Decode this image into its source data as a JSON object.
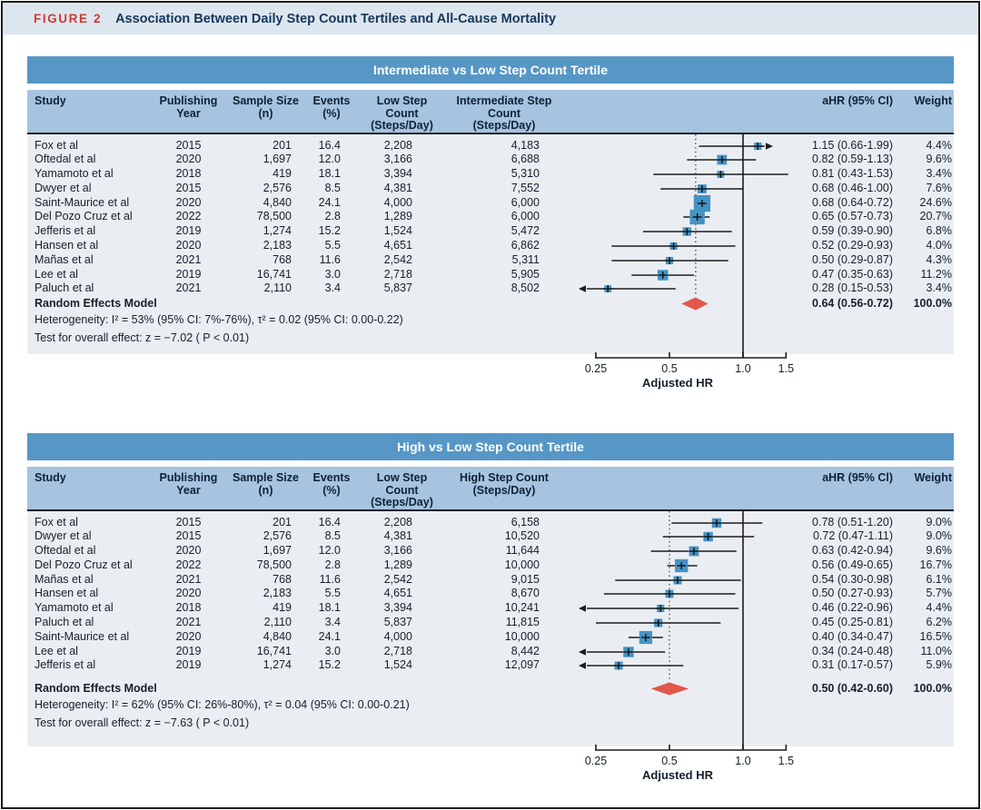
{
  "figure": {
    "label": "FIGURE 2",
    "title": "Association Between Daily Step Count Tertiles and All-Cause Mortality"
  },
  "colors": {
    "panel_header_bg": "#5697c6",
    "column_header_bg": "#a6c3e0",
    "body_bg": "#eaeef3",
    "title_band_bg": "#dce6ee",
    "figure_label_red": "#d03a30",
    "title_navy": "#16365c",
    "square_blue": "#4793c4",
    "diamond_red": "#e2574b",
    "line_black": "#1c1c1c"
  },
  "chart_data": [
    {
      "type": "forest",
      "title": "Intermediate vs Low Step Count Tertile",
      "columns": [
        {
          "l1": "Study",
          "l2": ""
        },
        {
          "l1": "Publishing Year",
          "l2": ""
        },
        {
          "l1": "Sample Size",
          "l2": "(n)"
        },
        {
          "l1": "Events",
          "l2": "(%)"
        },
        {
          "l1": "Low Step Count",
          "l2": "(Steps/Day)"
        },
        {
          "l1": "Intermediate Step Count",
          "l2": "(Steps/Day)"
        },
        {
          "l1": "",
          "l2": ""
        },
        {
          "l1": "aHR (95% CI)",
          "l2": ""
        },
        {
          "l1": "Weight",
          "l2": ""
        }
      ],
      "rows": [
        {
          "study": "Fox et al",
          "year": "2015",
          "n": "201",
          "events": "16.4",
          "low": "2,208",
          "steps": "4,183",
          "ahr": "1.15 (0.66-1.99)",
          "weight": "4.4%",
          "hr": 1.15,
          "lo": 0.66,
          "hi": 1.99,
          "w": 4.4
        },
        {
          "study": "Oftedal et al",
          "year": "2020",
          "n": "1,697",
          "events": "12.0",
          "low": "3,166",
          "steps": "6,688",
          "ahr": "0.82 (0.59-1.13)",
          "weight": "9.6%",
          "hr": 0.82,
          "lo": 0.59,
          "hi": 1.13,
          "w": 9.6
        },
        {
          "study": "Yamamoto et al",
          "year": "2018",
          "n": "419",
          "events": "18.1",
          "low": "3,394",
          "steps": "5,310",
          "ahr": "0.81 (0.43-1.53)",
          "weight": "3.4%",
          "hr": 0.81,
          "lo": 0.43,
          "hi": 1.53,
          "w": 3.4
        },
        {
          "study": "Dwyer et al",
          "year": "2015",
          "n": "2,576",
          "events": "8.5",
          "low": "4,381",
          "steps": "7,552",
          "ahr": "0.68 (0.46-1.00)",
          "weight": "7.6%",
          "hr": 0.68,
          "lo": 0.46,
          "hi": 1.0,
          "w": 7.6
        },
        {
          "study": "Saint-Maurice et al",
          "year": "2020",
          "n": "4,840",
          "events": "24.1",
          "low": "4,000",
          "steps": "6,000",
          "ahr": "0.68 (0.64-0.72)",
          "weight": "24.6%",
          "hr": 0.68,
          "lo": 0.64,
          "hi": 0.72,
          "w": 24.6
        },
        {
          "study": "Del Pozo Cruz et al",
          "year": "2022",
          "n": "78,500",
          "events": "2.8",
          "low": "1,289",
          "steps": "6,000",
          "ahr": "0.65 (0.57-0.73)",
          "weight": "20.7%",
          "hr": 0.65,
          "lo": 0.57,
          "hi": 0.73,
          "w": 20.7
        },
        {
          "study": "Jefferis et al",
          "year": "2019",
          "n": "1,274",
          "events": "15.2",
          "low": "1,524",
          "steps": "5,472",
          "ahr": "0.59 (0.39-0.90)",
          "weight": "6.8%",
          "hr": 0.59,
          "lo": 0.39,
          "hi": 0.9,
          "w": 6.8
        },
        {
          "study": "Hansen et al",
          "year": "2020",
          "n": "2,183",
          "events": "5.5",
          "low": "4,651",
          "steps": "6,862",
          "ahr": "0.52 (0.29-0.93)",
          "weight": "4.0%",
          "hr": 0.52,
          "lo": 0.29,
          "hi": 0.93,
          "w": 4.0
        },
        {
          "study": "Mañas et al",
          "year": "2021",
          "n": "768",
          "events": "11.6",
          "low": "2,542",
          "steps": "5,311",
          "ahr": "0.50 (0.29-0.87)",
          "weight": "4.3%",
          "hr": 0.5,
          "lo": 0.29,
          "hi": 0.87,
          "w": 4.3
        },
        {
          "study": "Lee et al",
          "year": "2019",
          "n": "16,741",
          "events": "3.0",
          "low": "2,718",
          "steps": "5,905",
          "ahr": "0.47 (0.35-0.63)",
          "weight": "11.2%",
          "hr": 0.47,
          "lo": 0.35,
          "hi": 0.63,
          "w": 11.2
        },
        {
          "study": "Paluch et al",
          "year": "2021",
          "n": "2,110",
          "events": "3.4",
          "low": "5,837",
          "steps": "8,502",
          "ahr": "0.28 (0.15-0.53)",
          "weight": "3.4%",
          "hr": 0.28,
          "lo": 0.15,
          "hi": 0.53,
          "w": 3.4
        }
      ],
      "pooled": {
        "label": "Random Effects Model",
        "ahr": "0.64 (0.56-0.72)",
        "weight": "100.0%",
        "hr": 0.64,
        "lo": 0.56,
        "hi": 0.72
      },
      "heterogeneity": "Heterogeneity: I² = 53% (95% CI: 7%-76%), τ² = 0.02 (95% CI: 0.00-0.22)",
      "test": "Test for overall effect: z = −7.02 ( P < 0.01)",
      "axis": {
        "scale": "log",
        "ticks": [
          0.25,
          0.5,
          1.0,
          1.5
        ],
        "tick_labels": [
          "0.25",
          "0.5",
          "1.0",
          "1.5"
        ],
        "label": "Adjusted HR"
      }
    },
    {
      "type": "forest",
      "title": "High vs Low Step Count Tertile",
      "columns": [
        {
          "l1": "Study",
          "l2": ""
        },
        {
          "l1": "Publishing Year",
          "l2": ""
        },
        {
          "l1": "Sample Size",
          "l2": "(n)"
        },
        {
          "l1": "Events",
          "l2": "(%)"
        },
        {
          "l1": "Low Step Count",
          "l2": "(Steps/Day)"
        },
        {
          "l1": "High Step Count",
          "l2": "(Steps/Day)"
        },
        {
          "l1": "",
          "l2": ""
        },
        {
          "l1": "aHR (95% Cl)",
          "l2": ""
        },
        {
          "l1": "Weight",
          "l2": ""
        }
      ],
      "rows": [
        {
          "study": "Fox et al",
          "year": "2015",
          "n": "201",
          "events": "16.4",
          "low": "2,208",
          "steps": "6,158",
          "ahr": "0.78 (0.51-1.20)",
          "weight": "9.0%",
          "hr": 0.78,
          "lo": 0.51,
          "hi": 1.2,
          "w": 9.0
        },
        {
          "study": "Dwyer et al",
          "year": "2015",
          "n": "2,576",
          "events": "8.5",
          "low": "4,381",
          "steps": "10,520",
          "ahr": "0.72 (0.47-1.11)",
          "weight": "9.0%",
          "hr": 0.72,
          "lo": 0.47,
          "hi": 1.11,
          "w": 9.0
        },
        {
          "study": "Oftedal et al",
          "year": "2020",
          "n": "1,697",
          "events": "12.0",
          "low": "3,166",
          "steps": "11,644",
          "ahr": "0.63 (0.42-0.94)",
          "weight": "9.6%",
          "hr": 0.63,
          "lo": 0.42,
          "hi": 0.94,
          "w": 9.6
        },
        {
          "study": "Del Pozo Cruz et al",
          "year": "2022",
          "n": "78,500",
          "events": "2.8",
          "low": "1,289",
          "steps": "10,000",
          "ahr": "0.56 (0.49-0.65)",
          "weight": "16.7%",
          "hr": 0.56,
          "lo": 0.49,
          "hi": 0.65,
          "w": 16.7
        },
        {
          "study": "Mañas et al",
          "year": "2021",
          "n": "768",
          "events": "11.6",
          "low": "2,542",
          "steps": "9,015",
          "ahr": "0.54 (0.30-0.98)",
          "weight": "6.1%",
          "hr": 0.54,
          "lo": 0.3,
          "hi": 0.98,
          "w": 6.1
        },
        {
          "study": "Hansen et al",
          "year": "2020",
          "n": "2,183",
          "events": "5.5",
          "low": "4,651",
          "steps": "8,670",
          "ahr": "0.50 (0.27-0.93)",
          "weight": "5.7%",
          "hr": 0.5,
          "lo": 0.27,
          "hi": 0.93,
          "w": 5.7
        },
        {
          "study": "Yamamoto et al",
          "year": "2018",
          "n": "419",
          "events": "18.1",
          "low": "3,394",
          "steps": "10,241",
          "ahr": "0.46 (0.22-0.96)",
          "weight": "4.4%",
          "hr": 0.46,
          "lo": 0.22,
          "hi": 0.96,
          "w": 4.4
        },
        {
          "study": "Paluch et al",
          "year": "2021",
          "n": "2,110",
          "events": "3.4",
          "low": "5,837",
          "steps": "11,815",
          "ahr": "0.45 (0.25-0.81)",
          "weight": "6.2%",
          "hr": 0.45,
          "lo": 0.25,
          "hi": 0.81,
          "w": 6.2
        },
        {
          "study": "Saint-Maurice et al",
          "year": "2020",
          "n": "4,840",
          "events": "24.1",
          "low": "4,000",
          "steps": "10,000",
          "ahr": "0.40 (0.34-0.47)",
          "weight": "16.5%",
          "hr": 0.4,
          "lo": 0.34,
          "hi": 0.47,
          "w": 16.5
        },
        {
          "study": "Lee et al",
          "year": "2019",
          "n": "16,741",
          "events": "3.0",
          "low": "2,718",
          "steps": "8,442",
          "ahr": "0.34 (0.24-0.48)",
          "weight": "11.0%",
          "hr": 0.34,
          "lo": 0.24,
          "hi": 0.48,
          "w": 11.0
        },
        {
          "study": "Jefferis et al",
          "year": "2019",
          "n": "1,274",
          "events": "15.2",
          "low": "1,524",
          "steps": "12,097",
          "ahr": "0.31 (0.17-0.57)",
          "weight": "5.9%",
          "hr": 0.31,
          "lo": 0.17,
          "hi": 0.57,
          "w": 5.9
        }
      ],
      "pooled": {
        "label": "Random Effects Model",
        "ahr": "0.50 (0.42-0.60)",
        "weight": "100.0%",
        "hr": 0.5,
        "lo": 0.42,
        "hi": 0.6
      },
      "heterogeneity": "Heterogeneity: I² = 62% (95% CI: 26%-80%), τ² = 0.04 (95% CI: 0.00-0.21)",
      "test": "Test for overall effect: z = −7.63 ( P < 0.01)",
      "axis": {
        "scale": "log",
        "ticks": [
          0.25,
          0.5,
          1.0,
          1.5
        ],
        "tick_labels": [
          "0.25",
          "0.5",
          "1.0",
          "1.5"
        ],
        "label": "Adjusted HR"
      }
    }
  ]
}
